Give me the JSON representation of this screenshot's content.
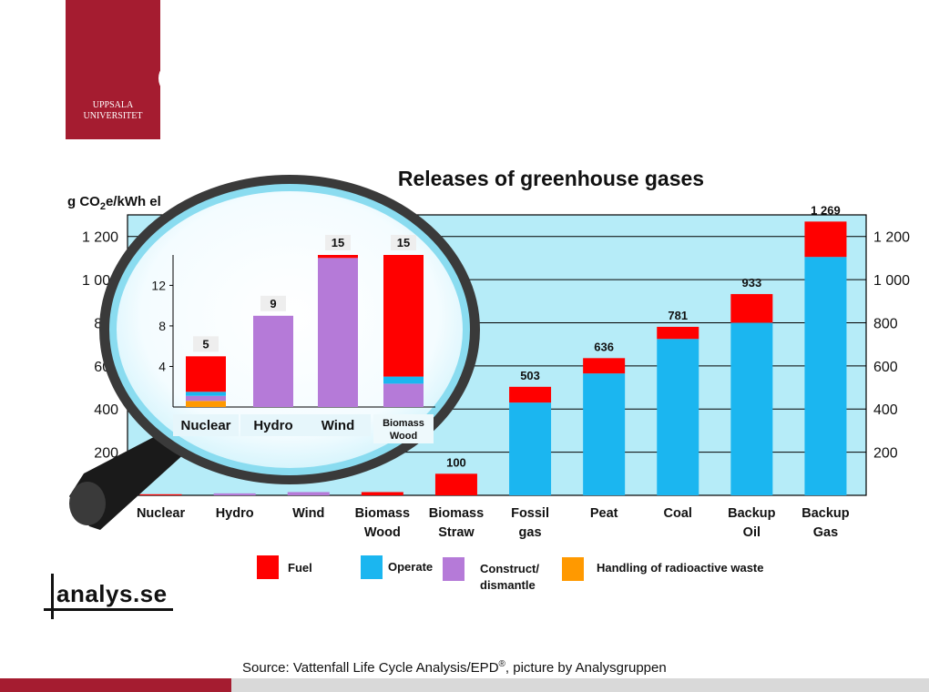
{
  "logo": {
    "line1": "UPPSALA",
    "line2": "UNIVERSITET"
  },
  "brand": "analys.se",
  "source_text": "Source: Vattenfall Life Cycle Analysis/EPD",
  "source_mark": "®",
  "source_suffix": ", picture by Analysgruppen",
  "colors": {
    "fuel": "#ff0000",
    "operate": "#1bb6f0",
    "construct": "#b57ad8",
    "waste": "#ff9900",
    "plot_bg": "#b6ecf8",
    "brand_red": "#a51c30"
  },
  "legend": [
    {
      "key": "fuel",
      "label": "Fuel"
    },
    {
      "key": "operate",
      "label": "Operate"
    },
    {
      "key": "construct",
      "label": "Construct/ dismantle"
    },
    {
      "key": "waste",
      "label": "Handling of radioactive waste"
    }
  ],
  "chart_data": [
    {
      "type": "bar",
      "stacked": true,
      "title": "Releases of greenhouse gases",
      "ylabel": "g CO2e/kWh el",
      "ylim": [
        0,
        1300
      ],
      "yticks": [
        200,
        400,
        600,
        800,
        1000,
        1200
      ],
      "ytick_labels": [
        "200",
        "400",
        "600",
        "800",
        "1 000",
        "1 200"
      ],
      "grid": true,
      "categories": [
        "Nuclear",
        "Hydro",
        "Wind",
        "Biomass Wood",
        "Biomass Straw",
        "Fossil gas",
        "Peat",
        "Coal",
        "Backup Oil",
        "Backup Gas"
      ],
      "totals": [
        5,
        9,
        15,
        15,
        100,
        503,
        636,
        781,
        933,
        1269
      ],
      "total_labels": [
        "",
        "",
        "",
        "",
        "100",
        "503",
        "636",
        "781",
        "933",
        "1 269"
      ],
      "series": [
        {
          "name": "Operate",
          "values": [
            0,
            0,
            0,
            0,
            0,
            430,
            565,
            725,
            800,
            1105
          ]
        },
        {
          "name": "Construct/ dismantle",
          "values": [
            0,
            9,
            15,
            0,
            0,
            0,
            0,
            0,
            0,
            0
          ]
        },
        {
          "name": "Fuel",
          "values": [
            5,
            0,
            0,
            15,
            100,
            73,
            71,
            56,
            133,
            164
          ]
        }
      ]
    },
    {
      "type": "bar",
      "stacked": true,
      "title": "",
      "ylim": [
        0,
        15
      ],
      "yticks": [
        4,
        8,
        12
      ],
      "categories": [
        "Nuclear",
        "Hydro",
        "Wind",
        "Biomass Wood"
      ],
      "totals": [
        5,
        9,
        15,
        15
      ],
      "total_labels": [
        "5",
        "9",
        "15",
        "15"
      ],
      "series": [
        {
          "name": "Handling of radioactive waste",
          "values": [
            0.6,
            0,
            0,
            0
          ]
        },
        {
          "name": "Construct/ dismantle",
          "values": [
            0.5,
            9,
            14.7,
            2.3
          ]
        },
        {
          "name": "Operate",
          "values": [
            0.4,
            0,
            0,
            0.7
          ]
        },
        {
          "name": "Fuel",
          "values": [
            3.5,
            0,
            0.3,
            12
          ]
        }
      ]
    }
  ]
}
